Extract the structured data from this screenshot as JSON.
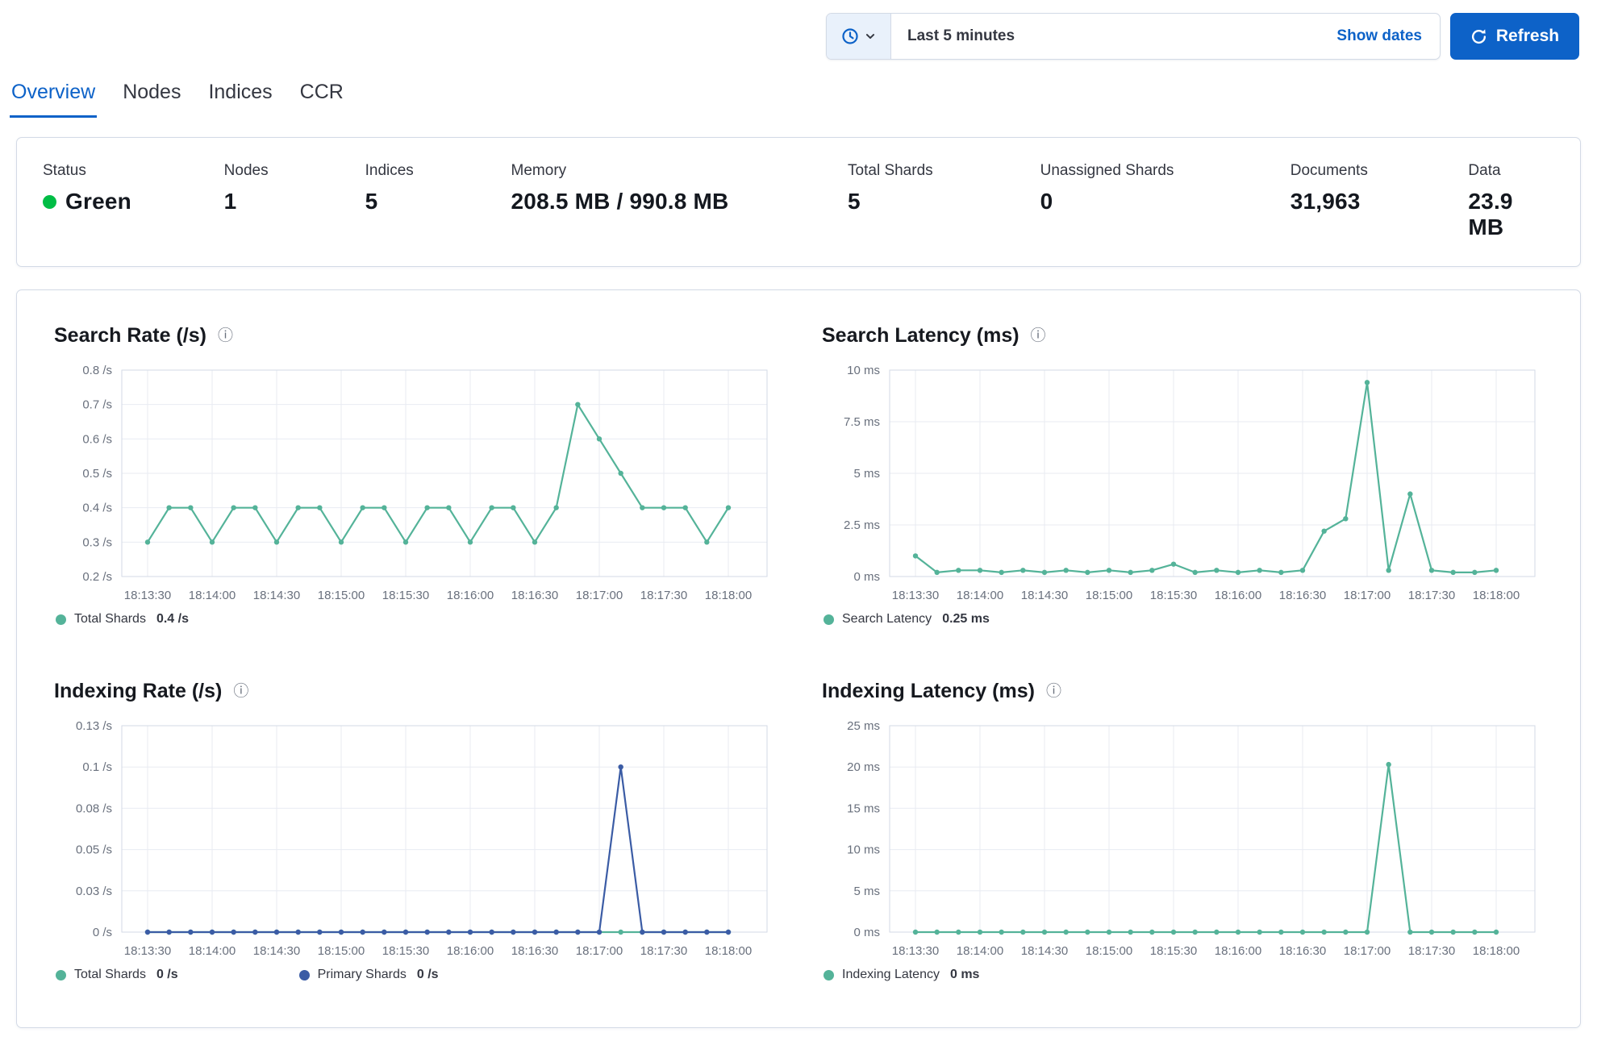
{
  "timebar": {
    "selected_range": "Last 5 minutes",
    "show_dates_label": "Show dates",
    "refresh_label": "Refresh"
  },
  "tabs": [
    {
      "label": "Overview",
      "active": true
    },
    {
      "label": "Nodes",
      "active": false
    },
    {
      "label": "Indices",
      "active": false
    },
    {
      "label": "CCR",
      "active": false
    }
  ],
  "summary": {
    "stats": [
      {
        "label": "Status",
        "value": "Green",
        "status_color": "#00bd45"
      },
      {
        "label": "Nodes",
        "value": "1"
      },
      {
        "label": "Indices",
        "value": "5"
      },
      {
        "label": "Memory",
        "value": "208.5 MB / 990.8 MB"
      },
      {
        "label": "Total Shards",
        "value": "5"
      },
      {
        "label": "Unassigned Shards",
        "value": "0"
      },
      {
        "label": "Documents",
        "value": "31,963"
      },
      {
        "label": "Data",
        "value": "23.9 MB"
      }
    ]
  },
  "colors": {
    "primary": "#0d62c8",
    "teal": "#54b399",
    "blue": "#3b5ca5",
    "green": "#00bd45",
    "border": "#d3dae6",
    "gridline": "#e8ebf2"
  },
  "chart_data": [
    {
      "type": "line",
      "name": "search-rate",
      "title": "Search Rate (/s)",
      "points_count": 28,
      "x_tick_labels": [
        "18:13:30",
        "18:14:00",
        "18:14:30",
        "18:15:00",
        "18:15:30",
        "18:16:00",
        "18:16:30",
        "18:17:00",
        "18:17:30",
        "18:18:00"
      ],
      "x_tick_indices": [
        0,
        3,
        6,
        9,
        12,
        15,
        18,
        21,
        24,
        27
      ],
      "ylim": [
        0.2,
        0.8
      ],
      "y_ticks": [
        {
          "v": 0.8,
          "label": "0.8 /s"
        },
        {
          "v": 0.7,
          "label": "0.7 /s"
        },
        {
          "v": 0.6,
          "label": "0.6 /s"
        },
        {
          "v": 0.5,
          "label": "0.5 /s"
        },
        {
          "v": 0.4,
          "label": "0.4 /s"
        },
        {
          "v": 0.3,
          "label": "0.3 /s"
        },
        {
          "v": 0.2,
          "label": "0.2 /s"
        }
      ],
      "series": [
        {
          "name": "Total Shards",
          "color": "#54b399",
          "values": [
            0.3,
            0.4,
            0.4,
            0.3,
            0.4,
            0.4,
            0.3,
            0.4,
            0.4,
            0.3,
            0.4,
            0.4,
            0.3,
            0.4,
            0.4,
            0.3,
            0.4,
            0.4,
            0.3,
            0.4,
            0.7,
            0.6,
            0.5,
            0.4,
            0.4,
            0.4,
            0.3,
            0.4
          ]
        }
      ],
      "legend": [
        {
          "name": "Total Shards",
          "value": "0.4 /s",
          "color": "#54b399"
        }
      ]
    },
    {
      "type": "line",
      "name": "search-latency",
      "title": "Search Latency (ms)",
      "points_count": 28,
      "x_tick_labels": [
        "18:13:30",
        "18:14:00",
        "18:14:30",
        "18:15:00",
        "18:15:30",
        "18:16:00",
        "18:16:30",
        "18:17:00",
        "18:17:30",
        "18:18:00"
      ],
      "x_tick_indices": [
        0,
        3,
        6,
        9,
        12,
        15,
        18,
        21,
        24,
        27
      ],
      "ylim": [
        0,
        10
      ],
      "y_ticks": [
        {
          "v": 10,
          "label": "10 ms"
        },
        {
          "v": 7.5,
          "label": "7.5 ms"
        },
        {
          "v": 5,
          "label": "5 ms"
        },
        {
          "v": 2.5,
          "label": "2.5 ms"
        },
        {
          "v": 0,
          "label": "0 ms"
        }
      ],
      "series": [
        {
          "name": "Search Latency",
          "color": "#54b399",
          "values": [
            1.0,
            0.2,
            0.3,
            0.3,
            0.2,
            0.3,
            0.2,
            0.3,
            0.2,
            0.3,
            0.2,
            0.3,
            0.6,
            0.2,
            0.3,
            0.2,
            0.3,
            0.2,
            0.3,
            2.2,
            2.8,
            9.4,
            0.3,
            4.0,
            0.3,
            0.2,
            0.2,
            0.3
          ]
        }
      ],
      "legend": [
        {
          "name": "Search Latency",
          "value": "0.25 ms",
          "color": "#54b399"
        }
      ]
    },
    {
      "type": "line",
      "name": "indexing-rate",
      "title": "Indexing Rate (/s)",
      "points_count": 28,
      "x_tick_labels": [
        "18:13:30",
        "18:14:00",
        "18:14:30",
        "18:15:00",
        "18:15:30",
        "18:16:00",
        "18:16:30",
        "18:17:00",
        "18:17:30",
        "18:18:00"
      ],
      "x_tick_indices": [
        0,
        3,
        6,
        9,
        12,
        15,
        18,
        21,
        24,
        27
      ],
      "ylim": [
        0,
        0.125
      ],
      "y_ticks": [
        {
          "v": 0.125,
          "label": "0.13 /s"
        },
        {
          "v": 0.1,
          "label": "0.1 /s"
        },
        {
          "v": 0.075,
          "label": "0.08 /s"
        },
        {
          "v": 0.05,
          "label": "0.05 /s"
        },
        {
          "v": 0.025,
          "label": "0.03 /s"
        },
        {
          "v": 0,
          "label": "0 /s"
        }
      ],
      "series": [
        {
          "name": "Total Shards",
          "color": "#54b399",
          "values": [
            0,
            0,
            0,
            0,
            0,
            0,
            0,
            0,
            0,
            0,
            0,
            0,
            0,
            0,
            0,
            0,
            0,
            0,
            0,
            0,
            0,
            0,
            0,
            0,
            0,
            0,
            0,
            0
          ]
        },
        {
          "name": "Primary Shards",
          "color": "#3b5ca5",
          "values": [
            0,
            0,
            0,
            0,
            0,
            0,
            0,
            0,
            0,
            0,
            0,
            0,
            0,
            0,
            0,
            0,
            0,
            0,
            0,
            0,
            0,
            0,
            0.1,
            0,
            0,
            0,
            0,
            0
          ]
        }
      ],
      "legend": [
        {
          "name": "Total Shards",
          "value": "0 /s",
          "color": "#54b399"
        },
        {
          "name": "Primary Shards",
          "value": "0 /s",
          "color": "#3b5ca5"
        }
      ]
    },
    {
      "type": "line",
      "name": "indexing-latency",
      "title": "Indexing Latency (ms)",
      "points_count": 28,
      "x_tick_labels": [
        "18:13:30",
        "18:14:00",
        "18:14:30",
        "18:15:00",
        "18:15:30",
        "18:16:00",
        "18:16:30",
        "18:17:00",
        "18:17:30",
        "18:18:00"
      ],
      "x_tick_indices": [
        0,
        3,
        6,
        9,
        12,
        15,
        18,
        21,
        24,
        27
      ],
      "ylim": [
        0,
        25
      ],
      "y_ticks": [
        {
          "v": 25,
          "label": "25 ms"
        },
        {
          "v": 20,
          "label": "20 ms"
        },
        {
          "v": 15,
          "label": "15 ms"
        },
        {
          "v": 10,
          "label": "10 ms"
        },
        {
          "v": 5,
          "label": "5 ms"
        },
        {
          "v": 0,
          "label": "0 ms"
        }
      ],
      "series": [
        {
          "name": "Indexing Latency",
          "color": "#54b399",
          "values": [
            0,
            0,
            0,
            0,
            0,
            0,
            0,
            0,
            0,
            0,
            0,
            0,
            0,
            0,
            0,
            0,
            0,
            0,
            0,
            0,
            0,
            0,
            20.3,
            0,
            0,
            0,
            0,
            0
          ]
        }
      ],
      "legend": [
        {
          "name": "Indexing Latency",
          "value": "0 ms",
          "color": "#54b399"
        }
      ]
    }
  ]
}
